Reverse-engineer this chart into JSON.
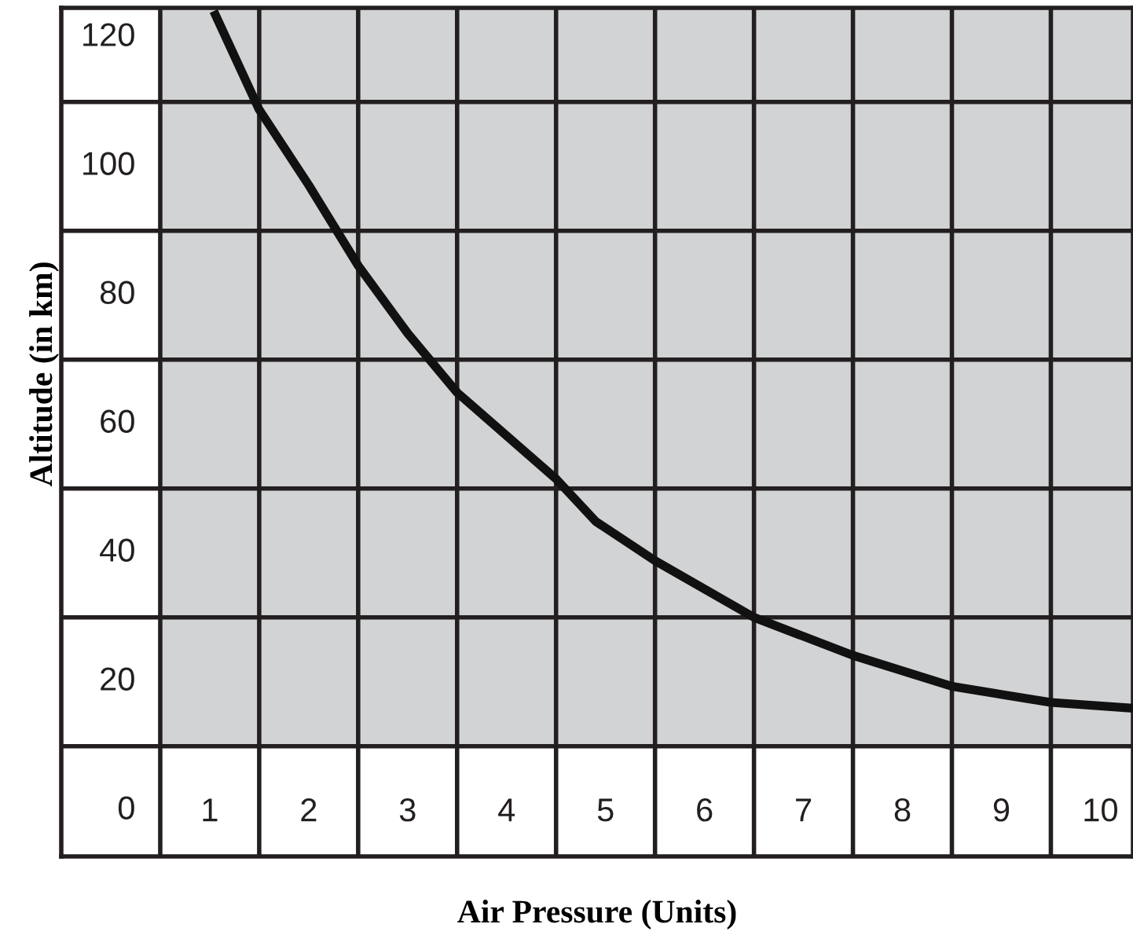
{
  "chart_data": {
    "type": "line",
    "xlabel": "Air Pressure (Units)",
    "ylabel": "Altitude (in km)",
    "x": [
      1.04,
      1.5,
      2.0,
      2.5,
      3.0,
      3.5,
      4.5,
      4.9,
      5.5,
      6.5,
      7.5,
      8.5,
      9.5,
      10.33
    ],
    "series": [
      {
        "color": "#111111",
        "values": [
          124.1,
          108.8,
          97.1,
          84.6,
          74.1,
          64.9,
          51.5,
          44.9,
          38.8,
          30.0,
          24.1,
          19.3,
          16.8,
          15.9
        ]
      }
    ],
    "xlim": [
      -0.5,
      10.33
    ],
    "ylim": [
      -7.1,
      124.6
    ],
    "xticks": [
      1,
      2,
      3,
      4,
      5,
      6,
      7,
      8,
      9,
      10
    ],
    "yticks": [
      0,
      20,
      40,
      60,
      80,
      100,
      120
    ],
    "grid": true,
    "marker": "none",
    "line_style": "solid"
  }
}
